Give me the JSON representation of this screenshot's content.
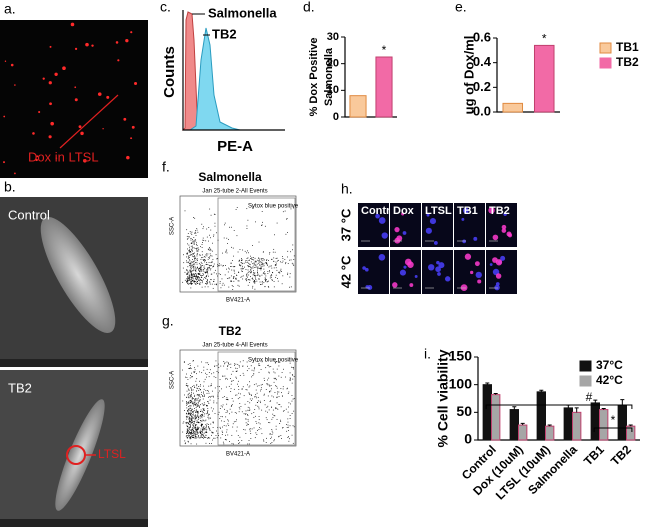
{
  "panels": {
    "a": {
      "label": "a.",
      "annotation": "Dox in LTSL"
    },
    "b": {
      "label": "b.",
      "top_label": "Control",
      "bottom_label": "TB2",
      "annotation": "LTSL"
    },
    "c": {
      "label": "c.",
      "ylabel": "Counts",
      "xlabel": "PE-A",
      "series": [
        "Salmonella",
        "TB2"
      ]
    },
    "f": {
      "label": "f.",
      "title": "Salmonella",
      "subtitle": "Jan 25-tube 2-All Events",
      "gate": "Sytox blue positive",
      "xlabel": "BV421-A",
      "ylabel": "SSC-A"
    },
    "g": {
      "label": "g.",
      "title": "TB2",
      "subtitle": "Jan 25-tube 4-All Events",
      "gate": "Sytox blue positive",
      "xlabel": "BV421-A",
      "ylabel": "SSC-A"
    },
    "h": {
      "label": "h.",
      "columns": [
        "Control",
        "Dox",
        "LTSL",
        "TB1",
        "TB2"
      ],
      "rows": [
        "37 °C",
        "42 °C"
      ]
    }
  },
  "chart_data": [
    {
      "type": "bar",
      "label": "d.",
      "ylabel": [
        "% Dox Positive",
        "Salmonella"
      ],
      "categories": [
        null,
        null
      ],
      "values": [
        8,
        22.5
      ],
      "colors": [
        "#f9c99b",
        "#f26aa6"
      ],
      "ylim": [
        0,
        30
      ],
      "yticks": [
        0,
        10,
        20,
        30
      ],
      "annotations": [
        "*"
      ]
    },
    {
      "type": "bar",
      "label": "e.",
      "ylabel": "ug of Dox/ml",
      "categories": [
        null,
        null
      ],
      "series": [
        {
          "name": "TB1",
          "color": "#f9c99b",
          "values": [
            0.07,
            null
          ]
        },
        {
          "name": "TB2",
          "color": "#f26aa6",
          "values": [
            null,
            0.54
          ]
        }
      ],
      "ylim": [
        0,
        0.6
      ],
      "yticks": [
        {
          "value": 0,
          "label": "0.0"
        },
        0.2,
        0.4,
        0.6
      ],
      "legend": "right",
      "annotations": [
        "*"
      ]
    },
    {
      "type": "bar",
      "label": "i.",
      "ylabel": "% Cell viability",
      "categories": [
        "Control",
        "Dox (10uM)",
        "LTSL (10uM)",
        "Salmonella",
        "TB1",
        "TB2"
      ],
      "series": [
        {
          "name": "37°C",
          "color": "#111111",
          "values": [
            100,
            55,
            87,
            58,
            67,
            63
          ],
          "errors": [
            3,
            5,
            3,
            5,
            5,
            10
          ]
        },
        {
          "name": "42°C",
          "color": "#a6a6a6",
          "values": [
            82,
            27,
            25,
            50,
            55,
            25
          ],
          "errors": [
            2,
            3,
            2,
            8,
            2,
            2
          ]
        }
      ],
      "ylim": [
        0,
        150
      ],
      "yticks": [
        0,
        50,
        100,
        150
      ],
      "legend": "upper right",
      "annotations": [
        "#",
        "*"
      ]
    }
  ]
}
